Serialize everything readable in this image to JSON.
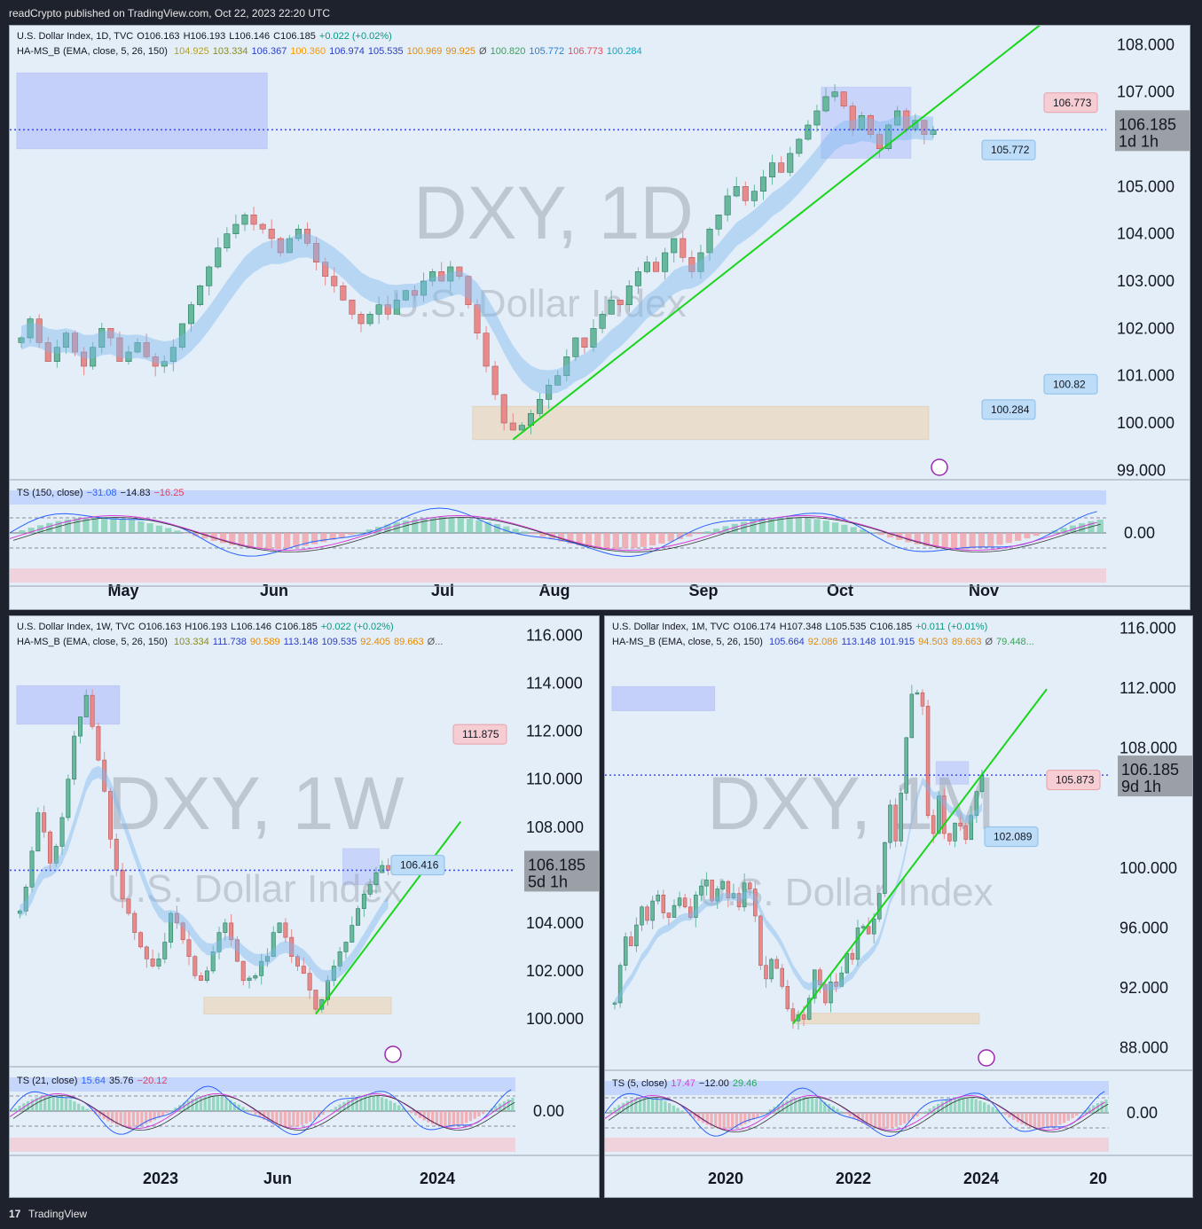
{
  "header": {
    "text": "readCrypto published on TradingView.com, Oct 22, 2023 22:20 UTC"
  },
  "footer": {
    "logo": "17",
    "text": "TradingView"
  },
  "colors": {
    "bg": "#1e222d",
    "panel": "#e3eef9",
    "up": "#67b89c",
    "down": "#e8898a",
    "blueLine": "#3f51f5",
    "greenLine": "#19d61a",
    "orange": "#ff9800",
    "olive": "#a3a336"
  },
  "chart_data": [
    {
      "type": "candlestick",
      "legend1": {
        "name": "U.S. Dollar Index, 1D, TVC",
        "o": "O106.163",
        "h": "H106.193",
        "l": "L106.146",
        "c": "C106.185",
        "chg": "+0.022 (+0.02%)"
      },
      "legend2": {
        "name": "HA-MS_B (EMA, close, 5, 26, 150)",
        "v": [
          {
            "t": "104.925",
            "c": "#b3a12b"
          },
          {
            "t": "103.334",
            "c": "#8a8a1f"
          },
          {
            "t": "106.367",
            "c": "#2a3ec8"
          },
          {
            "t": "100.360",
            "c": "#ff9800"
          },
          {
            "t": "106.974",
            "c": "#2a3ec8"
          },
          {
            "t": "105.535",
            "c": "#2a3ec8"
          },
          {
            "t": "100.969",
            "c": "#e68a00"
          },
          {
            "t": "99.925",
            "c": "#e68a00"
          },
          {
            "t": "Ø",
            "c": "#555555"
          },
          {
            "t": "100.820",
            "c": "#3aa15a"
          },
          {
            "t": "105.772",
            "c": "#2c7fcf"
          },
          {
            "t": "106.773",
            "c": "#e05060"
          },
          {
            "t": "100.284",
            "c": "#18a3b8"
          }
        ]
      },
      "watermark": "DXY, 1D",
      "watermark2": "U.S. Dollar Index",
      "y_ticks": [
        "108.000",
        "107.000",
        "106.185",
        "105.000",
        "104.000",
        "103.000",
        "102.000",
        "101.000",
        "100.000",
        "99.000"
      ],
      "ylim": [
        98.8,
        108.4
      ],
      "x_ticks": [
        "May",
        "Jun",
        "Jul",
        "Aug",
        "Sep",
        "Oct",
        "Nov"
      ],
      "last_price": "106.185",
      "countdown": "1d 1h",
      "tags": [
        "106.773",
        "105.772",
        "100.82",
        "100.284"
      ],
      "close": [
        101.8,
        102.2,
        101.7,
        101.3,
        101.6,
        101.9,
        101.5,
        101.2,
        101.6,
        102.0,
        101.8,
        101.3,
        101.5,
        101.7,
        101.4,
        101.2,
        101.3,
        101.6,
        102.1,
        102.5,
        102.9,
        103.3,
        103.7,
        104.0,
        104.2,
        104.4,
        104.2,
        104.1,
        103.9,
        103.6,
        103.9,
        104.1,
        103.8,
        103.4,
        103.1,
        102.9,
        102.6,
        102.3,
        102.1,
        102.3,
        102.5,
        102.3,
        102.6,
        102.8,
        102.7,
        103.0,
        103.2,
        103.0,
        103.3,
        103.1,
        102.5,
        101.9,
        101.2,
        100.6,
        100.0,
        99.85,
        99.95,
        100.2,
        100.5,
        100.8,
        101.0,
        101.4,
        101.8,
        101.6,
        102.0,
        102.3,
        102.6,
        102.5,
        102.9,
        103.2,
        103.4,
        103.2,
        103.6,
        103.9,
        103.5,
        103.2,
        103.6,
        104.1,
        104.4,
        104.8,
        105.0,
        104.7,
        104.9,
        105.2,
        105.5,
        105.3,
        105.7,
        106.0,
        106.3,
        106.6,
        106.9,
        107.0,
        106.7,
        106.2,
        106.5,
        106.1,
        105.8,
        106.3,
        106.6,
        106.2,
        106.4,
        106.1,
        106.2
      ]
    },
    {
      "type": "candlestick",
      "legend1": {
        "name": "U.S. Dollar Index, 1W, TVC",
        "o": "O106.163",
        "h": "H106.193",
        "l": "L106.146",
        "c": "C106.185",
        "chg": "+0.022 (+0.02%)"
      },
      "legend2": {
        "name": "HA-MS_B (EMA, close, 5, 26, 150)",
        "v": [
          {
            "t": "103.334",
            "c": "#8a8a1f"
          },
          {
            "t": "111.738",
            "c": "#2a3ec8"
          },
          {
            "t": "90.589",
            "c": "#e68a00"
          },
          {
            "t": "113.148",
            "c": "#2a3ec8"
          },
          {
            "t": "109.535",
            "c": "#2a3ec8"
          },
          {
            "t": "92.405",
            "c": "#e68a00"
          },
          {
            "t": "89.663",
            "c": "#e68a00"
          },
          {
            "t": "Ø...",
            "c": "#555555"
          }
        ]
      },
      "watermark": "DXY, 1W",
      "watermark2": "U.S. Dollar Index",
      "y_ticks": [
        "116.000",
        "114.000",
        "112.000",
        "110.000",
        "108.000",
        "106.185",
        "104.000",
        "102.000",
        "100.000"
      ],
      "ylim": [
        98.0,
        116.8
      ],
      "x_ticks": [
        "2023",
        "Jun",
        "2024"
      ],
      "last_price": "106.185",
      "countdown": "5d 1h",
      "tags": [
        "111.875",
        "106.416"
      ],
      "close": [
        104.5,
        105.5,
        107.0,
        108.6,
        107.8,
        106.5,
        107.2,
        108.4,
        110.0,
        111.8,
        112.6,
        113.5,
        112.2,
        110.8,
        109.5,
        107.5,
        106.2,
        105.0,
        104.4,
        103.6,
        103.0,
        102.5,
        102.2,
        102.5,
        103.2,
        104.4,
        104.0,
        103.3,
        102.6,
        101.8,
        101.6,
        102.0,
        102.8,
        103.6,
        104.0,
        103.3,
        102.4,
        101.6,
        101.7,
        101.8,
        102.4,
        102.6,
        103.6,
        104.0,
        103.4,
        102.6,
        102.2,
        101.9,
        101.2,
        100.4,
        100.8,
        101.6,
        102.2,
        102.8,
        103.2,
        103.9,
        104.6,
        105.2,
        105.6,
        106.1,
        106.4,
        106.2
      ]
    },
    {
      "type": "candlestick",
      "legend1": {
        "name": "U.S. Dollar Index, 1M, TVC",
        "o": "O106.174",
        "h": "H107.348",
        "l": "L105.535",
        "c": "C106.185",
        "chg": "+0.011 (+0.01%)"
      },
      "legend2": {
        "name": "HA-MS_B (EMA, close, 5, 26, 150)",
        "v": [
          {
            "t": "105.664",
            "c": "#2a3ec8"
          },
          {
            "t": "92.086",
            "c": "#e68a00"
          },
          {
            "t": "113.148",
            "c": "#2a3ec8"
          },
          {
            "t": "101.915",
            "c": "#2a3ec8"
          },
          {
            "t": "94.503",
            "c": "#e68a00"
          },
          {
            "t": "89.663",
            "c": "#e68a00"
          },
          {
            "t": "Ø",
            "c": "#555555"
          },
          {
            "t": "79.448...",
            "c": "#3aa15a"
          }
        ]
      },
      "watermark": "DXY, 1M",
      "watermark2": "U.S. Dollar Index",
      "y_ticks": [
        "116.000",
        "112.000",
        "108.000",
        "106.185",
        "100.000",
        "96.000",
        "92.000",
        "88.000"
      ],
      "ylim": [
        86.5,
        116.8
      ],
      "x_ticks": [
        "2020",
        "2022",
        "2024",
        "20"
      ],
      "last_price": "106.185",
      "countdown": "9d 1h",
      "tags": [
        "105.873",
        "102.089"
      ],
      "close": [
        91.0,
        93.5,
        95.4,
        94.8,
        96.2,
        97.4,
        96.5,
        97.8,
        98.2,
        97.0,
        96.7,
        97.5,
        98.0,
        97.4,
        96.7,
        98.2,
        98.8,
        99.2,
        97.8,
        98.6,
        99.1,
        98.0,
        98.3,
        97.4,
        99.0,
        98.6,
        96.8,
        93.5,
        92.6,
        93.9,
        93.3,
        92.1,
        90.6,
        89.8,
        90.2,
        89.9,
        91.3,
        93.2,
        92.2,
        91.0,
        92.4,
        92.1,
        93.0,
        94.3,
        93.9,
        96.0,
        96.1,
        95.6,
        96.6,
        98.3,
        101.7,
        104.2,
        101.8,
        105.0,
        108.7,
        111.6,
        111.7,
        110.8,
        103.5,
        102.3,
        104.8,
        102.3,
        101.8,
        103.0,
        102.8,
        101.9,
        103.5,
        105.1,
        106.2
      ]
    },
    {
      "type": "oscillator",
      "legend": {
        "name": "TS (150, close)",
        "a": "−31.08",
        "b": "−14.83",
        "c": "−16.25"
      },
      "zero": "0.00"
    },
    {
      "type": "oscillator",
      "legend": {
        "name": "TS (21, close)",
        "a": "15.64",
        "b": "35.76",
        "c": "−20.12"
      },
      "zero": "0.00"
    },
    {
      "type": "oscillator",
      "legend": {
        "name": "TS (5, close)",
        "a": "17.47",
        "b": "−12.00",
        "c": "29.46"
      },
      "zero": "0.00"
    }
  ]
}
